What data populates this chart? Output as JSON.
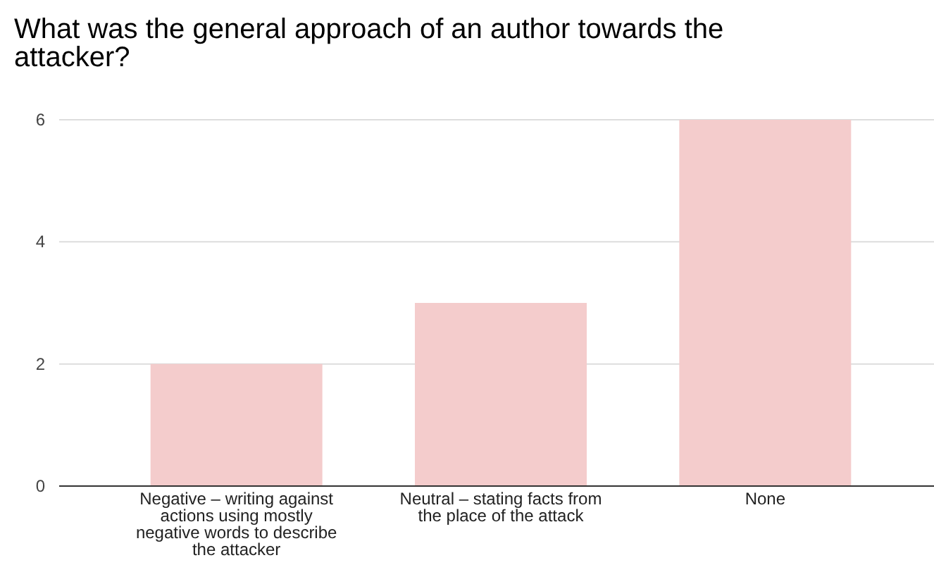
{
  "chart_data": {
    "type": "bar",
    "title": "What was the general approach of an author towards the attacker?",
    "categories": [
      "Negative – writing against actions using mostly negative words to describe the attacker",
      "Neutral – stating facts from the place of the attack",
      "None"
    ],
    "values": [
      2,
      3,
      6
    ],
    "color": "#f4cccc",
    "ylim": [
      0,
      6
    ],
    "yticks": [
      0,
      2,
      4,
      6
    ],
    "grid": "y"
  }
}
